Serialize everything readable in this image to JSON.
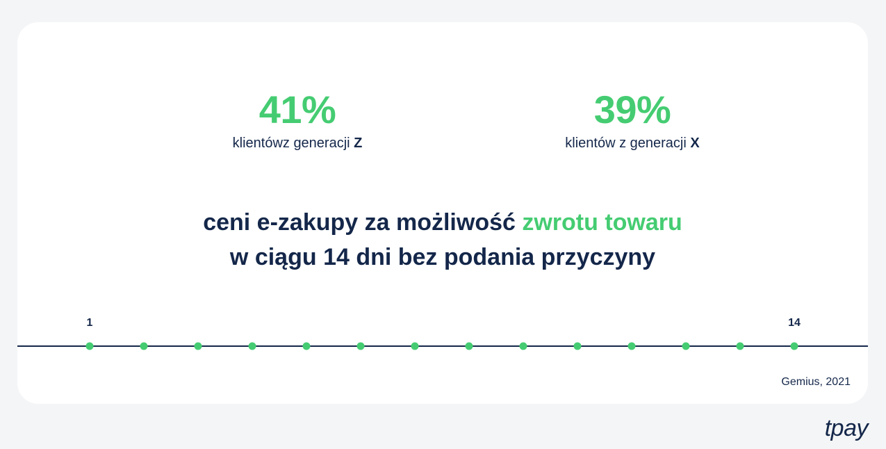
{
  "stats": [
    {
      "value": "41%",
      "label_prefix": "klientówz generacji ",
      "label_bold": "Z"
    },
    {
      "value": "39%",
      "label_prefix": "klientów z generacji ",
      "label_bold": "X"
    }
  ],
  "headline": {
    "line1_prefix": "ceni e-zakupy za możliwość ",
    "line1_accent": "zwrotu towaru",
    "line2": "w ciągu 14 dni bez podania przyczyny"
  },
  "timeline": {
    "start_label": "1",
    "end_label": "14",
    "dot_count": 14
  },
  "source": "Gemius, 2021",
  "logo": "tpay",
  "colors": {
    "accent": "#45cc72",
    "text": "#14274a",
    "card": "#ffffff",
    "background": "#f4f5f6"
  }
}
